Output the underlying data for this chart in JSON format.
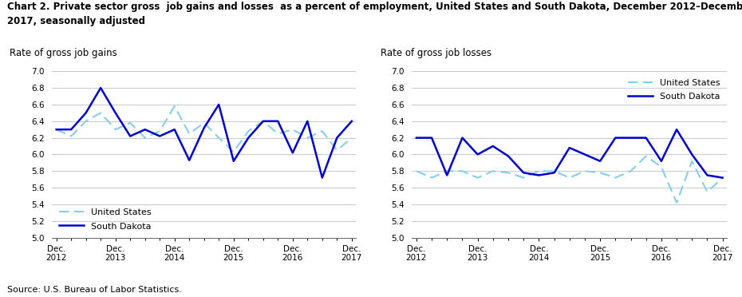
{
  "title_line1": "Chart 2. Private sector gross  job gains and losses  as a percent of employment, United States and South Dakota, December 2012–December",
  "title_line2": "2017, seasonally adjusted",
  "left_ylabel": "Rate of gross job gains",
  "right_ylabel": "Rate of gross job losses",
  "source": "Source: U.S. Bureau of Labor Statistics.",
  "ylim": [
    5.0,
    7.0
  ],
  "yticks": [
    5.0,
    5.2,
    5.4,
    5.6,
    5.8,
    6.0,
    6.2,
    6.4,
    6.6,
    6.8,
    7.0
  ],
  "xtick_labels": [
    "Dec.\n2012",
    "Dec.\n2013",
    "Dec.\n2014",
    "Dec.\n2015",
    "Dec.\n2016",
    "Dec.\n2017"
  ],
  "xtick_positions": [
    0,
    4,
    8,
    12,
    16,
    20
  ],
  "n_points": 21,
  "gains_us": [
    6.3,
    6.22,
    6.4,
    6.5,
    6.3,
    6.38,
    6.2,
    6.28,
    6.58,
    6.25,
    6.38,
    6.2,
    6.03,
    6.28,
    6.4,
    6.25,
    6.3,
    6.2,
    6.28,
    6.05,
    6.2
  ],
  "gains_sd": [
    6.3,
    6.3,
    6.5,
    6.8,
    6.5,
    6.22,
    6.3,
    6.22,
    6.3,
    5.93,
    6.32,
    6.6,
    5.92,
    6.2,
    6.4,
    6.4,
    6.02,
    6.4,
    5.72,
    6.2,
    6.4
  ],
  "losses_us": [
    5.8,
    5.72,
    5.8,
    5.8,
    5.72,
    5.8,
    5.78,
    5.72,
    5.8,
    5.8,
    5.72,
    5.8,
    5.78,
    5.72,
    5.8,
    5.98,
    5.85,
    5.42,
    5.92,
    5.55,
    5.72
  ],
  "losses_sd": [
    6.2,
    6.2,
    5.75,
    6.2,
    6.0,
    6.1,
    5.98,
    5.78,
    5.75,
    5.78,
    6.08,
    6.0,
    5.92,
    6.2,
    6.2,
    6.2,
    5.92,
    6.3,
    6.0,
    5.75,
    5.72
  ],
  "color_us": "#87CEEB",
  "color_sd": "#0000CD",
  "lw_us": 1.5,
  "lw_sd": 1.8
}
